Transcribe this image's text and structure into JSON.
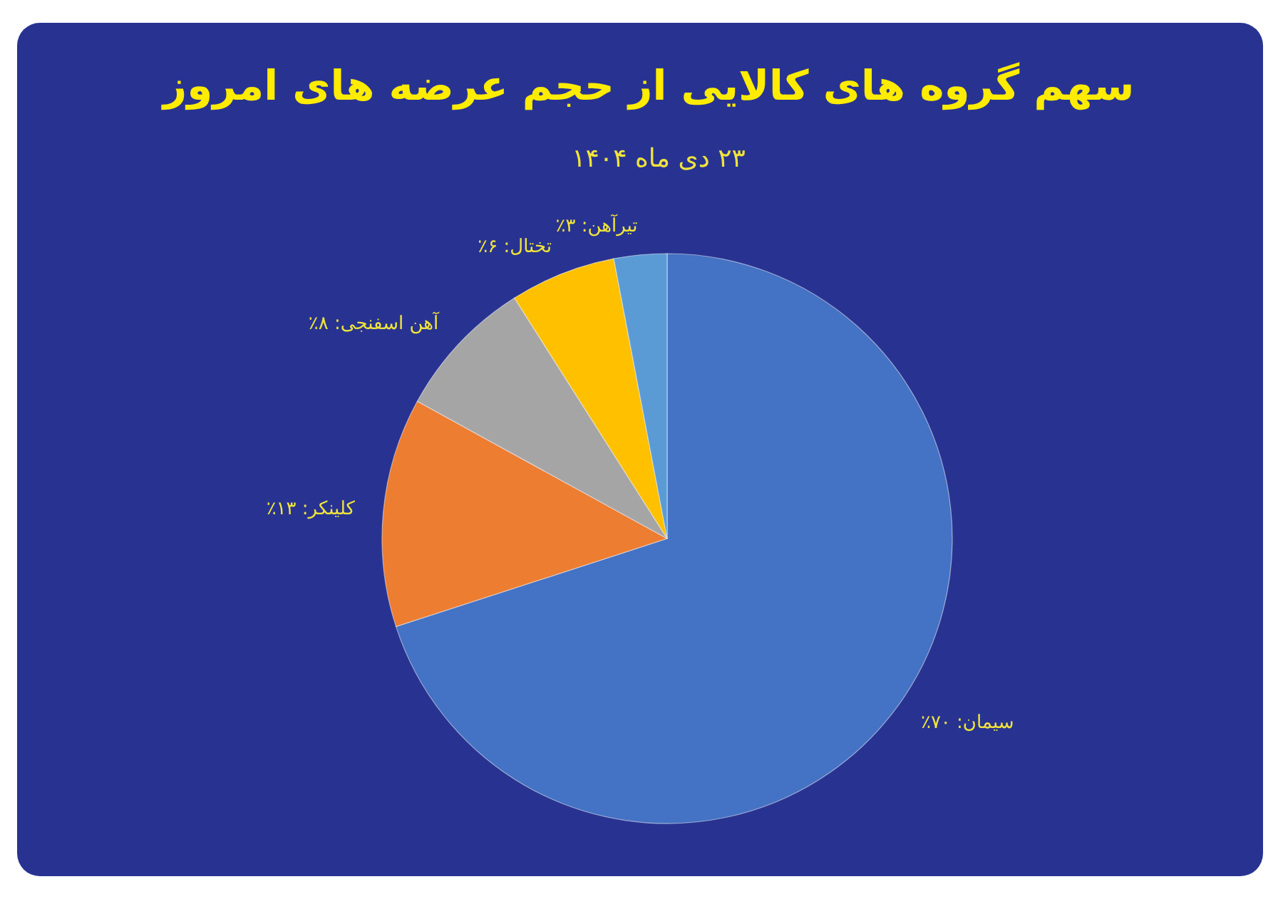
{
  "chart_data": {
    "type": "pie",
    "title": "سهم گروه های کالایی از حجم عرضه های امروز",
    "subtitle": "۲۳ دی ماه ۱۴۰۴",
    "categories": [
      "سیمان: ۷۰٪",
      "کلینکر: ۱۳٪",
      "آهن اسفنجی: ۸٪",
      "تختال: ۶٪",
      "تیرآهن: ۳٪"
    ],
    "values": [
      70,
      13,
      8,
      6,
      3
    ],
    "colors": [
      "#4472c4",
      "#ed7d31",
      "#a5a5a5",
      "#ffc000",
      "#5b9bd5"
    ]
  }
}
